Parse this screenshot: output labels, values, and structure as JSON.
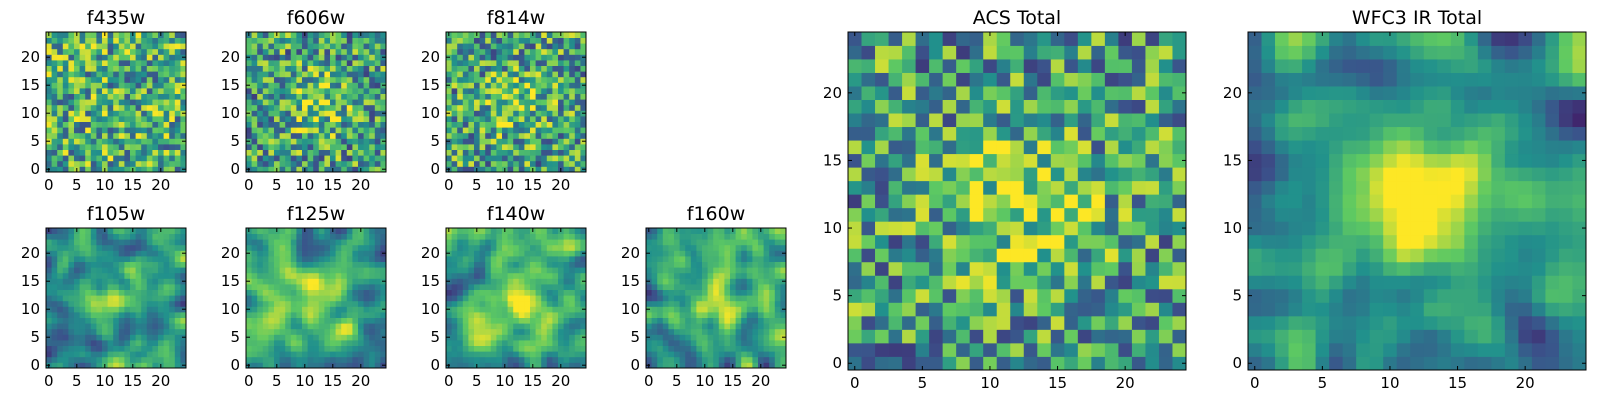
{
  "figure": {
    "description_visible": false
  },
  "colormap": [
    "#440154",
    "#3b528b",
    "#21918c",
    "#5ec962",
    "#fde725"
  ],
  "chart_data": [
    {
      "type": "heatmap",
      "key": "f435w",
      "title": "f435w",
      "grid_size": [
        25,
        25
      ],
      "xticks": [
        "0",
        "5",
        "10",
        "15",
        "20"
      ],
      "yticks": [
        "0",
        "5",
        "10",
        "15",
        "20"
      ],
      "xlim": [
        -0.5,
        24.5
      ],
      "ylim": [
        -0.5,
        24.5
      ],
      "style": "noise",
      "seed": 11,
      "center_boost": 0.0
    },
    {
      "type": "heatmap",
      "key": "f606w",
      "title": "f606w",
      "grid_size": [
        25,
        25
      ],
      "xticks": [
        "0",
        "5",
        "10",
        "15",
        "20"
      ],
      "yticks": [
        "0",
        "5",
        "10",
        "15",
        "20"
      ],
      "xlim": [
        -0.5,
        24.5
      ],
      "ylim": [
        -0.5,
        24.5
      ],
      "style": "noise",
      "seed": 23,
      "center_boost": 0.25
    },
    {
      "type": "heatmap",
      "key": "f814w",
      "title": "f814w",
      "grid_size": [
        25,
        25
      ],
      "xticks": [
        "0",
        "5",
        "10",
        "15",
        "20"
      ],
      "yticks": [
        "0",
        "5",
        "10",
        "15",
        "20"
      ],
      "xlim": [
        -0.5,
        24.5
      ],
      "ylim": [
        -0.5,
        24.5
      ],
      "style": "noise",
      "seed": 37,
      "center_boost": 0.2
    },
    {
      "type": "heatmap",
      "key": "f105w",
      "title": "f105w",
      "grid_size": [
        25,
        25
      ],
      "xticks": [
        "0",
        "5",
        "10",
        "15",
        "20"
      ],
      "yticks": [
        "0",
        "5",
        "10",
        "15",
        "20"
      ],
      "xlim": [
        -0.5,
        24.5
      ],
      "ylim": [
        -0.5,
        24.5
      ],
      "style": "smooth",
      "seed": 41,
      "center_boost": 0.35
    },
    {
      "type": "heatmap",
      "key": "f125w",
      "title": "f125w",
      "grid_size": [
        25,
        25
      ],
      "xticks": [
        "0",
        "5",
        "10",
        "15",
        "20"
      ],
      "yticks": [
        "0",
        "5",
        "10",
        "15",
        "20"
      ],
      "xlim": [
        -0.5,
        24.5
      ],
      "ylim": [
        -0.5,
        24.5
      ],
      "style": "smooth",
      "seed": 53,
      "center_boost": 0.25
    },
    {
      "type": "heatmap",
      "key": "f140w",
      "title": "f140w",
      "grid_size": [
        25,
        25
      ],
      "xticks": [
        "0",
        "5",
        "10",
        "15",
        "20"
      ],
      "yticks": [
        "0",
        "5",
        "10",
        "15",
        "20"
      ],
      "xlim": [
        -0.5,
        24.5
      ],
      "ylim": [
        -0.5,
        24.5
      ],
      "style": "smooth",
      "seed": 67,
      "center_boost": 0.3
    },
    {
      "type": "heatmap",
      "key": "f160w",
      "title": "f160w",
      "grid_size": [
        25,
        25
      ],
      "xticks": [
        "0",
        "5",
        "10",
        "15",
        "20"
      ],
      "yticks": [
        "0",
        "5",
        "10",
        "15",
        "20"
      ],
      "xlim": [
        -0.5,
        24.5
      ],
      "ylim": [
        -0.5,
        24.5
      ],
      "style": "smooth",
      "seed": 79,
      "center_boost": 0.35
    },
    {
      "type": "heatmap",
      "key": "acs_total",
      "title": "ACS Total",
      "grid_size": [
        25,
        25
      ],
      "xticks": [
        "0",
        "5",
        "10",
        "15",
        "20"
      ],
      "yticks": [
        "0",
        "5",
        "10",
        "15",
        "20"
      ],
      "xlim": [
        -0.5,
        24.5
      ],
      "ylim": [
        -0.5,
        24.5
      ],
      "style": "noise",
      "seed": 97,
      "center_boost": 0.3
    },
    {
      "type": "heatmap",
      "key": "wfc3_ir_total",
      "title": "WFC3 IR Total",
      "grid_size": [
        25,
        25
      ],
      "xticks": [
        "0",
        "5",
        "10",
        "15",
        "20"
      ],
      "yticks": [
        "0",
        "5",
        "10",
        "15",
        "20"
      ],
      "xlim": [
        -0.5,
        24.5
      ],
      "ylim": [
        -0.5,
        24.5
      ],
      "style": "smooth",
      "seed": 113,
      "center_boost": 0.55
    }
  ]
}
